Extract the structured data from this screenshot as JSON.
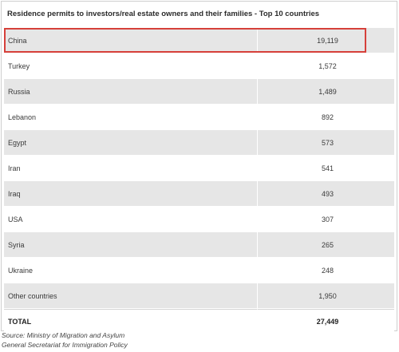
{
  "title": "Residence permits to investors/real estate owners and their families - Top 10 countries",
  "rows": [
    {
      "country": "China",
      "value": "19,119"
    },
    {
      "country": "Turkey",
      "value": "1,572"
    },
    {
      "country": "Russia",
      "value": "1,489"
    },
    {
      "country": "Lebanon",
      "value": "892"
    },
    {
      "country": "Egypt",
      "value": "573"
    },
    {
      "country": "Iran",
      "value": "541"
    },
    {
      "country": "Iraq",
      "value": "493"
    },
    {
      "country": "USA",
      "value": "307"
    },
    {
      "country": "Syria",
      "value": "265"
    },
    {
      "country": "Ukraine",
      "value": "248"
    },
    {
      "country": "Other countries",
      "value": "1,950"
    }
  ],
  "total": {
    "label": "TOTAL",
    "value": "27,449"
  },
  "source": {
    "line1": "Source: Ministry of Migration and Asylum",
    "line2": "General Secretariat for Immigration Policy"
  },
  "colors": {
    "highlight": "#d6403a",
    "alt_row": "#e6e6e6"
  }
}
